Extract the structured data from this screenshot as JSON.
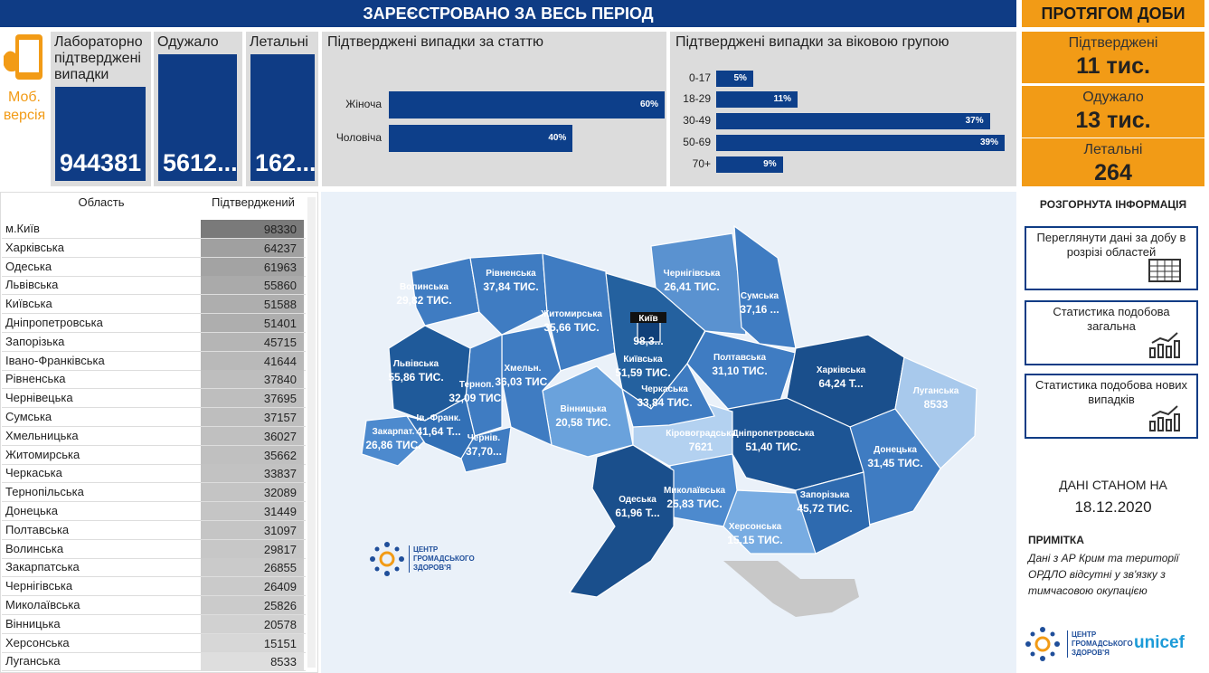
{
  "header": {
    "title": "ЗАРЕЄСТРОВАНО ЗА ВЕСЬ ПЕРІОД",
    "daily_title": "ПРОТЯГОМ ДОБИ",
    "mobile": "Моб. версія"
  },
  "totals": [
    {
      "label": "Лабораторно підтверджені випадки",
      "value": 944381
    },
    {
      "label": "Одужало",
      "value": "5612..."
    },
    {
      "label": "Летальні",
      "value": "162..."
    }
  ],
  "daily": [
    {
      "label": "Підтверджені",
      "value": "11 тис."
    },
    {
      "label": "Одужало",
      "value": "13 тис."
    },
    {
      "label": "Летальні",
      "value": 264
    }
  ],
  "chart_data": [
    {
      "type": "bar",
      "orientation": "horizontal",
      "title": "Підтверджені випадки за статтю",
      "categories": [
        "Жіноча",
        "Чоловіча"
      ],
      "values": [
        60,
        40
      ],
      "value_labels": [
        "60%",
        "40%"
      ],
      "color": "#0d3f8a"
    },
    {
      "type": "bar",
      "orientation": "horizontal",
      "title": "Підтверджені випадки за віковою групою",
      "categories": [
        "0-17",
        "18-29",
        "30-49",
        "50-69",
        "70+"
      ],
      "values": [
        5,
        11,
        37,
        39,
        9
      ],
      "value_labels": [
        "5%",
        "11%",
        "37%",
        "39%",
        "9%"
      ],
      "color": "#0d3f8a"
    }
  ],
  "table": {
    "columns": [
      "Область",
      "Підтверджений"
    ],
    "rows": [
      [
        "м.Київ",
        98330
      ],
      [
        "Харківська",
        64237
      ],
      [
        "Одеська",
        61963
      ],
      [
        "Львівська",
        55860
      ],
      [
        "Київська",
        51588
      ],
      [
        "Дніпропетровська",
        51401
      ],
      [
        "Запорізька",
        45715
      ],
      [
        "Івано-Франківська",
        41644
      ],
      [
        "Рівненська",
        37840
      ],
      [
        "Чернівецька",
        37695
      ],
      [
        "Сумська",
        37157
      ],
      [
        "Хмельницька",
        36027
      ],
      [
        "Житомирська",
        35662
      ],
      [
        "Черкаська",
        33837
      ],
      [
        "Тернопільська",
        32089
      ],
      [
        "Донецька",
        31449
      ],
      [
        "Полтавська",
        31097
      ],
      [
        "Волинська",
        29817
      ],
      [
        "Закарпатська",
        26855
      ],
      [
        "Чернігівська",
        26409
      ],
      [
        "Миколаївська",
        25826
      ],
      [
        "Вінницька",
        20578
      ],
      [
        "Херсонська",
        15151
      ],
      [
        "Луганська",
        8533
      ]
    ]
  },
  "map": {
    "logo": "ЦЕНТР ГРОМАДСЬКОГО ЗДОРОВ'Я",
    "regions": [
      {
        "name": "Волинська",
        "label": "29,82 ТИС.",
        "color": "#3f7cc2"
      },
      {
        "name": "Рівненська",
        "label": "37,84 ТИС.",
        "color": "#3f7cc2"
      },
      {
        "name": "Житомирська",
        "label": "35,66 ТИС.",
        "color": "#3f7cc2"
      },
      {
        "name": "Київська",
        "label": "51,59 ТИС.",
        "color": "#24619f"
      },
      {
        "name": "Чернігівська",
        "label": "26,41 ТИС.",
        "color": "#5a92d0"
      },
      {
        "name": "Сумська",
        "label": "37,16 ...",
        "color": "#3f7cc2"
      },
      {
        "name": "Полтавська",
        "label": "31,10 ТИС.",
        "color": "#3f7cc2"
      },
      {
        "name": "Харківська",
        "label": "64,24 Т...",
        "color": "#1a4f8c"
      },
      {
        "name": "Луганська",
        "label": "8533",
        "color": "#a8c9ec"
      },
      {
        "name": "Донецька",
        "label": "31,45 ТИС.",
        "color": "#3f7cc2"
      },
      {
        "name": "Дніпропетровська",
        "label": "51,40 ТИС.",
        "color": "#1d5595"
      },
      {
        "name": "Запорізька",
        "label": "45,72 ТИС.",
        "color": "#2e6aaf"
      },
      {
        "name": "Херсонська",
        "label": "15,15 ТИС.",
        "color": "#78ace2"
      },
      {
        "name": "Миколаївська",
        "label": "25,83 ТИС.",
        "color": "#4d8ace"
      },
      {
        "name": "Кіровоградська",
        "label": "7621",
        "color": "#b3d1f0"
      },
      {
        "name": "Черкаська",
        "label": "33,84 ТИС.",
        "color": "#3f7cc2"
      },
      {
        "name": "Вінницька",
        "label": "20,58 ТИС.",
        "color": "#6aa2dc"
      },
      {
        "name": "Одеська",
        "label": "61,96 Т...",
        "color": "#1a4f8c"
      },
      {
        "name": "Хмельн.",
        "label": "36,03 ТИС.",
        "color": "#3f7cc2"
      },
      {
        "name": "Терноп.",
        "label": "32,09 ТИС.",
        "color": "#3f7cc2"
      },
      {
        "name": "Львівська",
        "label": "55,86 ТИС.",
        "color": "#1f5a9a"
      },
      {
        "name": "Закарпат.",
        "label": "26,86 ТИС.",
        "color": "#4d8ace"
      },
      {
        "name": "Ів.-Франк.",
        "label": "41,64 Т...",
        "color": "#3270b6"
      },
      {
        "name": "Чернів.",
        "label": "37,70...",
        "color": "#3f7cc2"
      },
      {
        "name": "Київ",
        "label": "98,3...",
        "color": "#103f78"
      }
    ]
  },
  "sidebar": {
    "title": "РОЗГОРНУТА ІНФОРМАЦІЯ",
    "buttons": [
      "Переглянути дані за добу в розрізі областей",
      "Статистика подобова загальна",
      "Статистика подобова нових випадків"
    ],
    "date_caption": "ДАНІ СТАНОМ НА",
    "date": "18.12.2020",
    "note_title": "ПРИМІТКА",
    "note": "Дані з АР Крим та території ОРДЛО відсутні у зв'язку з тимчасовою окупацією",
    "partner": "unicef"
  }
}
